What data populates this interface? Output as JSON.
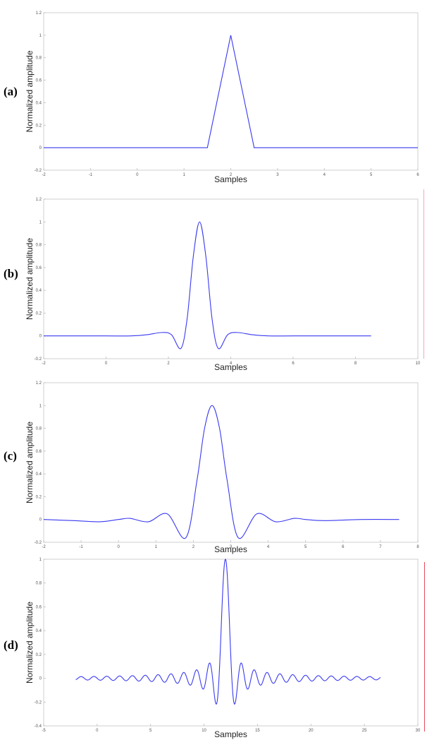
{
  "panel_labels": [
    "(a)",
    "(b)",
    "(c)",
    "(d)"
  ],
  "colors": {
    "curve": "#3a3af0",
    "edge_marker": "#e8485a",
    "edge_marker_light": "#f4aab6"
  },
  "chart_data": [
    {
      "type": "line",
      "panel": "(a)",
      "xlabel": "Samples",
      "ylabel": "Normalized amplitude",
      "xlim": [
        -2,
        6
      ],
      "ylim": [
        -0.2,
        1.2
      ],
      "xticks": [
        -2,
        -1,
        0,
        1,
        2,
        3,
        4,
        5,
        6
      ],
      "yticks": [
        -0.2,
        0,
        0.2,
        0.4,
        0.6,
        0.8,
        1,
        1.2
      ],
      "xtick_labels": [
        "-2",
        "-1",
        "0",
        "1",
        "2",
        "3",
        "4",
        "5",
        "6"
      ],
      "ytick_labels": [
        "-0.2",
        "0",
        "0.2",
        "0.4",
        "0.6",
        "0.8",
        "1",
        "1.2"
      ],
      "grid": false,
      "series": [
        {
          "x": [
            -2,
            1.5,
            2,
            2.5,
            6
          ],
          "y": [
            0,
            0,
            1,
            0,
            0
          ]
        }
      ]
    },
    {
      "type": "line",
      "panel": "(b)",
      "xlabel": "Samples",
      "ylabel": "Normalized amplitude",
      "xlim": [
        -2,
        10
      ],
      "ylim": [
        -0.2,
        1.2
      ],
      "xticks": [
        -2,
        0,
        2,
        4,
        6,
        8,
        10
      ],
      "yticks": [
        -0.2,
        0,
        0.2,
        0.4,
        0.6,
        0.8,
        1,
        1.2
      ],
      "xtick_labels": [
        "-2",
        "0",
        "2",
        "4",
        "6",
        "8",
        "10"
      ],
      "ytick_labels": [
        "-0.2",
        "0",
        "0.2",
        "0.4",
        "0.6",
        "0.8",
        "1",
        "1.2"
      ],
      "grid": false,
      "series": [
        {
          "x": [
            -2,
            -1,
            0,
            0.8,
            1.3,
            1.8,
            2.1,
            2.4,
            2.6,
            2.8,
            3,
            3.2,
            3.4,
            3.6,
            3.9,
            4.2,
            4.7,
            5.2,
            6,
            7,
            8.5
          ],
          "y": [
            0,
            0,
            0,
            0,
            0.01,
            0.03,
            0.01,
            -0.11,
            0.15,
            0.7,
            1,
            0.7,
            0.15,
            -0.11,
            0.01,
            0.03,
            0.01,
            0,
            0,
            0,
            0
          ]
        }
      ]
    },
    {
      "type": "line",
      "panel": "(c)",
      "xlabel": "Samples",
      "ylabel": "Normalized amplitude",
      "xlim": [
        -2,
        8
      ],
      "ylim": [
        -0.2,
        1.2
      ],
      "xticks": [
        -2,
        -1,
        0,
        1,
        2,
        3,
        4,
        5,
        6,
        7,
        8
      ],
      "yticks": [
        -0.2,
        0,
        0.2,
        0.4,
        0.6,
        0.8,
        1,
        1.2
      ],
      "xtick_labels": [
        "-2",
        "-1",
        "0",
        "1",
        "2",
        "3",
        "4",
        "5",
        "6",
        "7",
        "8"
      ],
      "ytick_labels": [
        "-0.2",
        "0",
        "0.2",
        "0.4",
        "0.6",
        "0.8",
        "1",
        "1.2"
      ],
      "grid": false,
      "series": [
        {
          "x": [
            -2,
            -1.2,
            -0.5,
            0,
            0.3,
            0.8,
            1.3,
            1.8,
            2.1,
            2.3,
            2.5,
            2.7,
            2.9,
            3.2,
            3.7,
            4.2,
            4.7,
            5,
            5.5,
            6.5,
            7.5
          ],
          "y": [
            0,
            -0.01,
            -0.02,
            0,
            0.01,
            -0.02,
            0.05,
            -0.16,
            0.35,
            0.8,
            1,
            0.8,
            0.35,
            -0.16,
            0.05,
            -0.02,
            0.01,
            0,
            -0.01,
            0,
            0
          ]
        }
      ]
    },
    {
      "type": "line",
      "panel": "(d)",
      "xlabel": "Samples",
      "ylabel": "Normalized amplitude",
      "xlim": [
        -5,
        30
      ],
      "ylim": [
        -0.4,
        1
      ],
      "xticks": [
        -5,
        0,
        5,
        10,
        15,
        20,
        25,
        30
      ],
      "yticks": [
        -0.4,
        -0.2,
        0,
        0.2,
        0.4,
        0.6,
        0.8,
        1
      ],
      "xtick_labels": [
        "-5",
        "0",
        "5",
        "10",
        "15",
        "20",
        "25",
        "30"
      ],
      "ytick_labels": [
        "-0.4",
        "-0.2",
        "0",
        "0.2",
        "0.4",
        "0.6",
        "0.8",
        "1"
      ],
      "grid": false,
      "series": [
        {
          "function": "sinc",
          "center": 12,
          "width": 0.6,
          "x_start": -2,
          "x_end": 26.5,
          "peak": 1
        }
      ]
    }
  ]
}
